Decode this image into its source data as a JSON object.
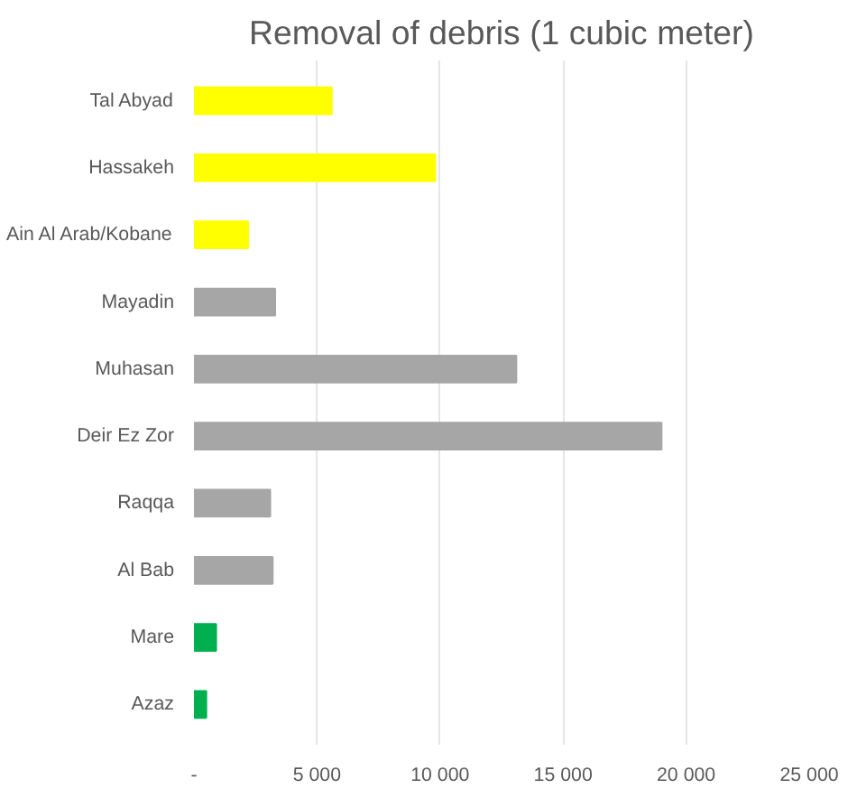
{
  "chart_data": {
    "type": "bar",
    "orientation": "horizontal",
    "title": "Removal of debris (1 cubic meter)",
    "categories": [
      "Tal Abyad",
      "Hassakeh",
      "Ain Al Arab/Kobane",
      "Mayadin",
      "Muhasan",
      "Deir Ez Zor",
      "Raqqa",
      "Al Bab",
      "Mare",
      "Azaz"
    ],
    "values": [
      5600,
      9800,
      2200,
      3300,
      13100,
      19000,
      3100,
      3200,
      900,
      500
    ],
    "colors": [
      "#ffff00",
      "#ffff00",
      "#ffff00",
      "#a6a6a6",
      "#a6a6a6",
      "#a6a6a6",
      "#a6a6a6",
      "#a6a6a6",
      "#00b050",
      "#00b050"
    ],
    "xlim": [
      0,
      25000
    ],
    "xticks": [
      {
        "value": 0,
        "label": "-"
      },
      {
        "value": 5000,
        "label": "5 000"
      },
      {
        "value": 10000,
        "label": "10 000"
      },
      {
        "value": 15000,
        "label": "15 000"
      },
      {
        "value": 20000,
        "label": "20 000"
      },
      {
        "value": 25000,
        "label": "25 000"
      }
    ],
    "grid": "x"
  }
}
